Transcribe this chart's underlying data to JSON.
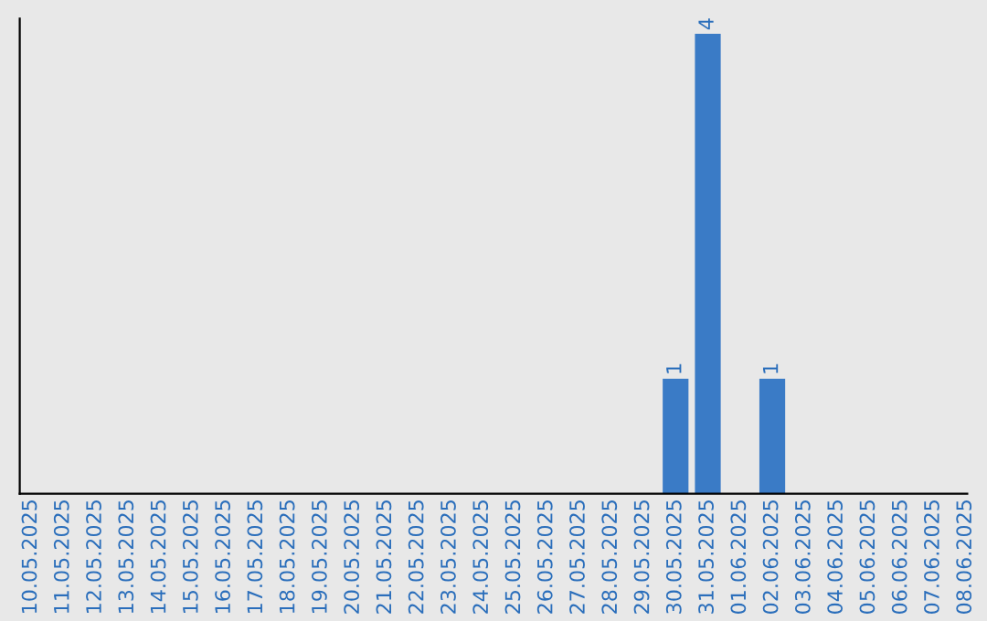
{
  "chart_data": {
    "type": "bar",
    "categories": [
      "10.05.2025",
      "11.05.2025",
      "12.05.2025",
      "13.05.2025",
      "14.05.2025",
      "15.05.2025",
      "16.05.2025",
      "17.05.2025",
      "18.05.2025",
      "19.05.2025",
      "20.05.2025",
      "21.05.2025",
      "22.05.2025",
      "23.05.2025",
      "24.05.2025",
      "25.05.2025",
      "26.05.2025",
      "27.05.2025",
      "28.05.2025",
      "29.05.2025",
      "30.05.2025",
      "31.05.2025",
      "01.06.2025",
      "02.06.2025",
      "03.06.2025",
      "04.06.2025",
      "05.06.2025",
      "06.06.2025",
      "07.06.2025",
      "08.06.2025"
    ],
    "values": [
      null,
      null,
      null,
      null,
      null,
      null,
      null,
      null,
      null,
      null,
      null,
      null,
      null,
      null,
      null,
      null,
      null,
      null,
      null,
      null,
      1,
      4,
      null,
      1,
      null,
      null,
      null,
      null,
      null,
      null
    ],
    "color": "#3a7bc6",
    "tick_labels": "x",
    "data_labels": true,
    "grid": false,
    "legend": false
  }
}
